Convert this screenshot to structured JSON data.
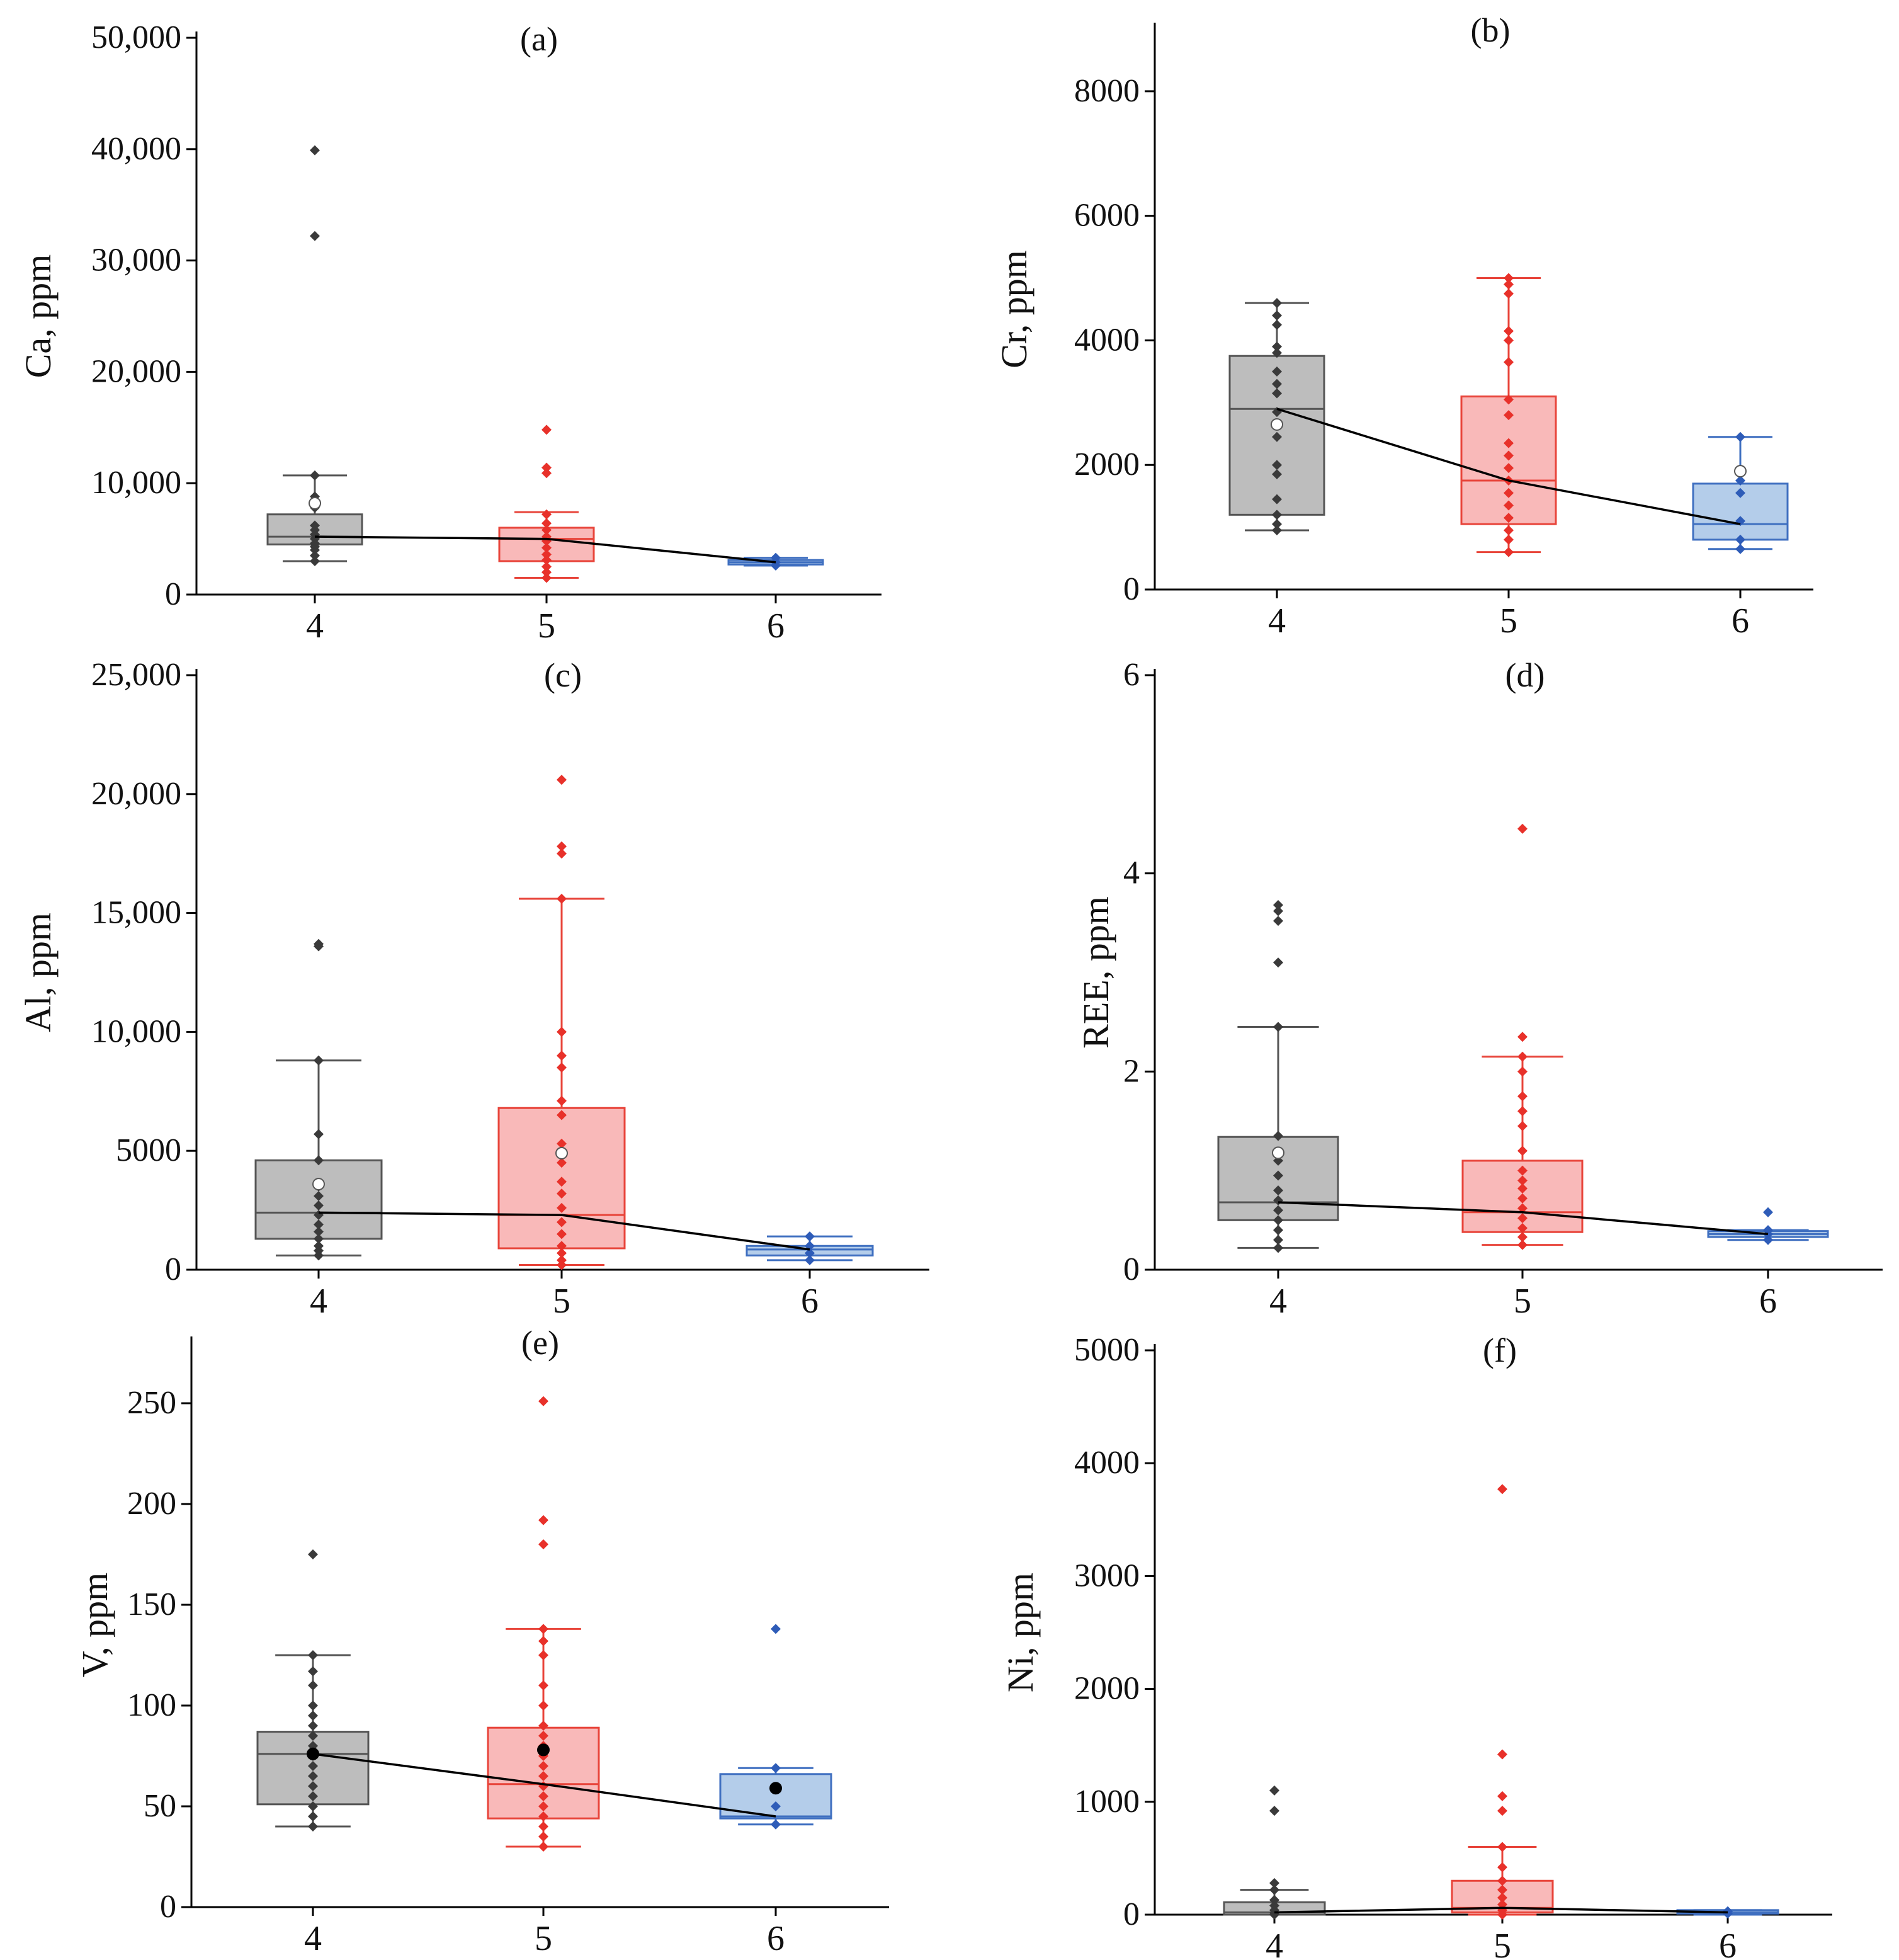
{
  "figure": {
    "categories": [
      "4",
      "5",
      "6"
    ],
    "colors": {
      "grey_fill": "#bdbdbd",
      "grey_stroke": "#555555",
      "grey_point": "#3a3a3a",
      "red_fill": "#f9b9b9",
      "red_stroke": "#e8443a",
      "red_point": "#e8312a",
      "blue_fill": "#b4cdea",
      "blue_stroke": "#3f6fc0",
      "blue_point": "#2e5cb8",
      "mean_fill": "#ffffff",
      "mean_dark": "#000000",
      "trend": "#000000"
    }
  },
  "chart_data": [
    {
      "type": "box",
      "panel_label": "(a)",
      "ylabel": "Ca, ppm",
      "ylim": [
        0,
        50000
      ],
      "yticks": [
        0,
        10000,
        20000,
        30000,
        40000,
        50000
      ],
      "ytick_labels": [
        "0",
        "10,000",
        "20,000",
        "30,000",
        "40,000",
        "50,000"
      ],
      "categories": [
        "4",
        "5",
        "6"
      ],
      "boxes": [
        {
          "q1": 4500,
          "median": 5200,
          "q3": 7200,
          "whisker_low": 3000,
          "whisker_high": 10700,
          "mean": 8200,
          "mean_style": "open",
          "points": [
            3000,
            3500,
            4000,
            4300,
            4600,
            5000,
            5400,
            5800,
            6200,
            7800,
            8800,
            10700,
            32200,
            39900
          ]
        },
        {
          "q1": 3000,
          "median": 5000,
          "q3": 6000,
          "whisker_low": 1500,
          "whisker_high": 7400,
          "mean": null,
          "mean_style": "none",
          "points": [
            1500,
            2000,
            2500,
            3100,
            3600,
            4200,
            4800,
            5200,
            5800,
            6400,
            7200,
            10900,
            11400,
            14800
          ]
        },
        {
          "q1": 2700,
          "median": 2900,
          "q3": 3100,
          "whisker_low": 2600,
          "whisker_high": 3300,
          "mean": null,
          "mean_style": "none",
          "points": [
            2600,
            2900,
            3300
          ]
        }
      ],
      "trend": [
        5200,
        5000,
        2900
      ]
    },
    {
      "type": "box",
      "panel_label": "(b)",
      "ylabel": "Cr, ppm",
      "ylim": [
        0,
        9000
      ],
      "yticks": [
        0,
        2000,
        4000,
        6000,
        8000
      ],
      "ytick_labels": [
        "0",
        "2000",
        "4000",
        "6000",
        "8000"
      ],
      "categories": [
        "4",
        "5",
        "6"
      ],
      "boxes": [
        {
          "q1": 1200,
          "median": 2900,
          "q3": 3750,
          "whisker_low": 950,
          "whisker_high": 4600,
          "mean": 2650,
          "mean_style": "open",
          "points": [
            950,
            1050,
            1200,
            1450,
            1850,
            2000,
            2450,
            2850,
            3150,
            3300,
            3500,
            3800,
            3900,
            4250,
            4400,
            4600
          ]
        },
        {
          "q1": 1050,
          "median": 1750,
          "q3": 3100,
          "whisker_low": 600,
          "whisker_high": 5000,
          "mean": null,
          "mean_style": "none",
          "points": [
            600,
            800,
            950,
            1150,
            1350,
            1550,
            1750,
            1950,
            2150,
            2350,
            2800,
            3050,
            3650,
            4000,
            4150,
            4750,
            4900,
            5000
          ]
        },
        {
          "q1": 800,
          "median": 1050,
          "q3": 1700,
          "whisker_low": 650,
          "whisker_high": 2450,
          "mean": 1900,
          "mean_style": "open",
          "points": [
            650,
            800,
            1100,
            1550,
            1750,
            2450
          ]
        }
      ],
      "trend": [
        2900,
        1750,
        1050
      ]
    },
    {
      "type": "box",
      "panel_label": "(c)",
      "ylabel": "Al, ppm",
      "ylim": [
        0,
        25000
      ],
      "yticks": [
        0,
        5000,
        10000,
        15000,
        20000,
        25000
      ],
      "ytick_labels": [
        "0",
        "5000",
        "10,000",
        "15,000",
        "20,000",
        "25,000"
      ],
      "categories": [
        "4",
        "5",
        "6"
      ],
      "boxes": [
        {
          "q1": 1300,
          "median": 2400,
          "q3": 4600,
          "whisker_low": 600,
          "whisker_high": 8800,
          "mean": 3600,
          "mean_style": "open",
          "points": [
            600,
            800,
            1000,
            1300,
            1600,
            1900,
            2300,
            2700,
            3100,
            3500,
            4600,
            5700,
            8800,
            13600,
            13700
          ]
        },
        {
          "q1": 900,
          "median": 2300,
          "q3": 6800,
          "whisker_low": 200,
          "whisker_high": 15600,
          "mean": 4900,
          "mean_style": "open",
          "points": [
            200,
            400,
            700,
            1000,
            1500,
            2000,
            2600,
            3200,
            3700,
            4500,
            5300,
            6500,
            7100,
            8500,
            9000,
            10000,
            15600,
            17500,
            17800,
            20600
          ]
        },
        {
          "q1": 600,
          "median": 850,
          "q3": 1000,
          "whisker_low": 400,
          "whisker_high": 1400,
          "mean": null,
          "mean_style": "none",
          "points": [
            400,
            700,
            1000,
            1400
          ]
        }
      ],
      "trend": [
        2400,
        2300,
        850
      ]
    },
    {
      "type": "box",
      "panel_label": "(d)",
      "ylabel": "REE, ppm",
      "ylim": [
        0,
        6
      ],
      "yticks": [
        0,
        2,
        4,
        6
      ],
      "ytick_labels": [
        "0",
        "2",
        "4",
        "6"
      ],
      "categories": [
        "4",
        "5",
        "6"
      ],
      "boxes": [
        {
          "q1": 0.5,
          "median": 0.68,
          "q3": 1.34,
          "whisker_low": 0.22,
          "whisker_high": 2.45,
          "mean": 1.18,
          "mean_style": "open",
          "points": [
            0.22,
            0.3,
            0.4,
            0.5,
            0.6,
            0.7,
            0.8,
            0.95,
            1.1,
            1.35,
            2.45,
            3.1,
            3.52,
            3.62,
            3.68
          ]
        },
        {
          "q1": 0.38,
          "median": 0.58,
          "q3": 1.1,
          "whisker_low": 0.25,
          "whisker_high": 2.15,
          "mean": null,
          "mean_style": "none",
          "points": [
            0.25,
            0.33,
            0.42,
            0.52,
            0.62,
            0.72,
            0.82,
            0.9,
            1.0,
            1.2,
            1.45,
            1.6,
            1.75,
            2.0,
            2.15,
            2.35,
            4.45
          ]
        },
        {
          "q1": 0.33,
          "median": 0.36,
          "q3": 0.39,
          "whisker_low": 0.3,
          "whisker_high": 0.4,
          "mean": null,
          "mean_style": "none",
          "points": [
            0.3,
            0.36,
            0.4,
            0.58
          ]
        }
      ],
      "trend": [
        0.68,
        0.58,
        0.36
      ]
    },
    {
      "type": "box",
      "panel_label": "(e)",
      "ylabel": "V, ppm",
      "ylim": [
        0,
        280
      ],
      "yticks": [
        0,
        50,
        100,
        150,
        200,
        250
      ],
      "ytick_labels": [
        "0",
        "50",
        "100",
        "150",
        "200",
        "250"
      ],
      "categories": [
        "4",
        "5",
        "6"
      ],
      "boxes": [
        {
          "q1": 51,
          "median": 76,
          "q3": 87,
          "whisker_low": 40,
          "whisker_high": 125,
          "mean": 76,
          "mean_style": "filled",
          "points": [
            40,
            45,
            50,
            55,
            60,
            65,
            70,
            75,
            80,
            85,
            90,
            95,
            100,
            110,
            117,
            125,
            175
          ]
        },
        {
          "q1": 44,
          "median": 61,
          "q3": 89,
          "whisker_low": 30,
          "whisker_high": 138,
          "mean": 78,
          "mean_style": "filled",
          "points": [
            30,
            35,
            40,
            45,
            50,
            55,
            60,
            65,
            70,
            75,
            80,
            85,
            90,
            100,
            110,
            125,
            132,
            138,
            180,
            192,
            251
          ]
        },
        {
          "q1": 44,
          "median": 45,
          "q3": 66,
          "whisker_low": 41,
          "whisker_high": 69,
          "mean": 59,
          "mean_style": "filled",
          "points": [
            41,
            50,
            59,
            69,
            138
          ]
        }
      ],
      "trend": [
        76,
        61,
        45
      ]
    },
    {
      "type": "box",
      "panel_label": "(f)",
      "ylabel": "Ni, ppm",
      "ylim": [
        0,
        5000
      ],
      "yticks": [
        0,
        1000,
        2000,
        3000,
        4000,
        5000
      ],
      "ytick_labels": [
        "0",
        "1000",
        "2000",
        "3000",
        "4000",
        "5000"
      ],
      "categories": [
        "4",
        "5",
        "6"
      ],
      "boxes": [
        {
          "q1": 0,
          "median": 20,
          "q3": 110,
          "whisker_low": 0,
          "whisker_high": 220,
          "mean": null,
          "mean_style": "none",
          "points": [
            0,
            15,
            40,
            80,
            130,
            220,
            280,
            920,
            1100
          ]
        },
        {
          "q1": 20,
          "median": 60,
          "q3": 300,
          "whisker_low": 0,
          "whisker_high": 600,
          "mean": null,
          "mean_style": "none",
          "points": [
            0,
            40,
            90,
            150,
            220,
            300,
            420,
            600,
            920,
            1050,
            1420,
            3770
          ]
        },
        {
          "q1": 10,
          "median": 20,
          "q3": 40,
          "whisker_low": 0,
          "whisker_high": 40,
          "mean": null,
          "mean_style": "none",
          "points": [
            10,
            30
          ]
        }
      ],
      "trend": [
        20,
        60,
        20
      ]
    }
  ]
}
